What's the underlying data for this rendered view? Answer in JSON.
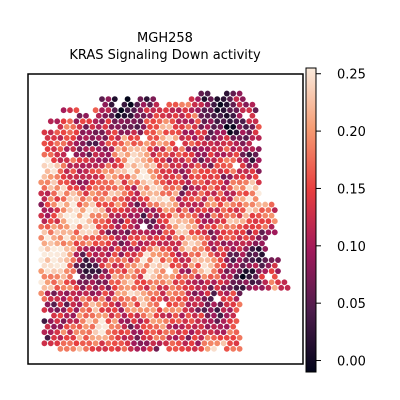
{
  "chart_data": {
    "type": "heatmap",
    "subtype": "spatial-hexagonal-spot-map",
    "title": [
      "MGH258",
      "KRAS Signaling Down activity"
    ],
    "xlabel": "",
    "ylabel": "",
    "axes_ticks_shown": false,
    "colorbar": {
      "colormap": "rocket",
      "range": [
        -0.01,
        0.255
      ],
      "ticks": [
        0.0,
        0.05,
        0.1,
        0.15,
        0.2,
        0.25
      ],
      "tick_labels": [
        "0.00",
        "0.05",
        "0.10",
        "0.15",
        "0.20",
        "0.25"
      ],
      "colors": [
        "#03051a",
        "#4c1d4b",
        "#a11a5b",
        "#e83f3f",
        "#f69c73",
        "#faebdd"
      ]
    },
    "activity_summary": {
      "approximate_range": [
        0.0,
        0.25
      ],
      "high_regions": [
        "left edge",
        "center",
        "lower center"
      ],
      "low_regions": [
        "top edge",
        "top-right",
        "right side"
      ]
    }
  }
}
